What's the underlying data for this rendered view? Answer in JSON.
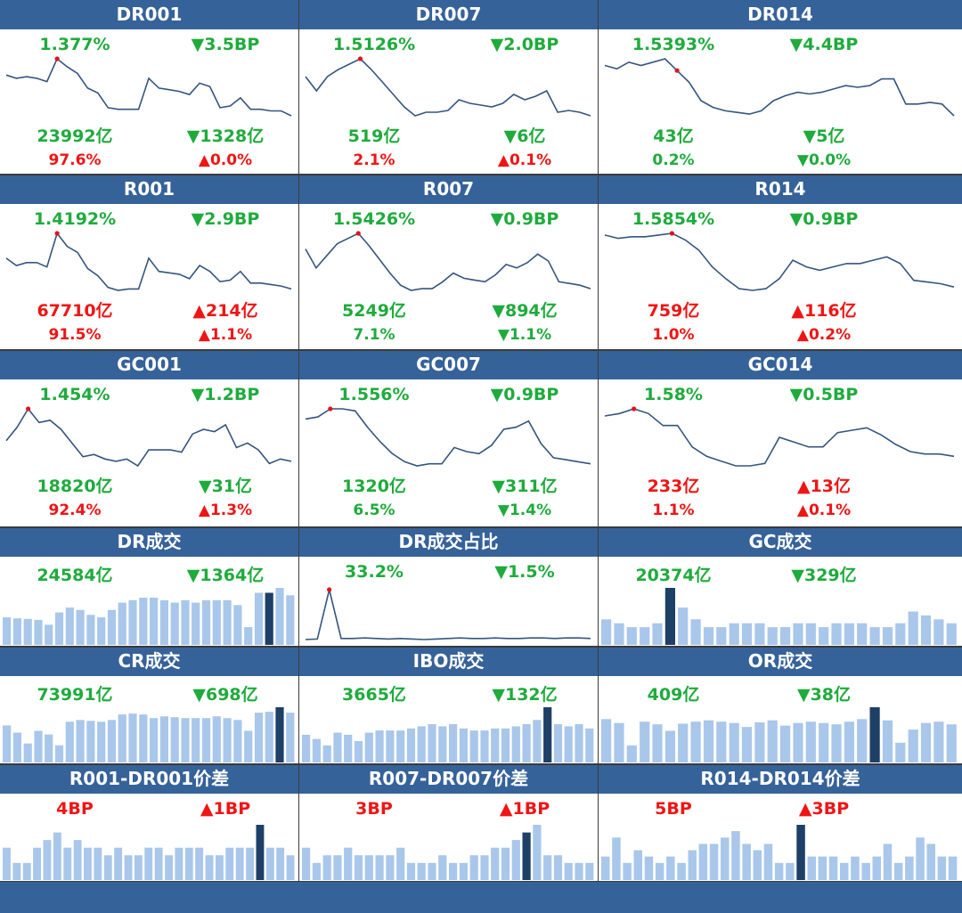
{
  "colors": {
    "header_bg": "#36629a",
    "up": "#f01414",
    "down": "#1fab3c",
    "line": "#34557f",
    "bar": "#a9c7ea",
    "bar_highlight": "#1e3f66"
  },
  "panels": [
    {
      "title": "DR001",
      "kind": "line",
      "rate": "1.377%",
      "rate_change": "▼3.5BP",
      "rate_dir": "down",
      "volume": "23992亿",
      "volume_change": "▼1328亿",
      "volume_dir": "down",
      "share": "97.6%",
      "share_change": "▲0.0%",
      "share_color": "up",
      "share_dir": "up"
    },
    {
      "title": "DR007",
      "kind": "line",
      "rate": "1.5126%",
      "rate_change": "▼2.0BP",
      "rate_dir": "down",
      "volume": "519亿",
      "volume_change": "▼6亿",
      "volume_dir": "down",
      "share": "2.1%",
      "share_change": "▲0.1%",
      "share_color": "up",
      "share_dir": "up"
    },
    {
      "title": "DR014",
      "kind": "line",
      "rate": "1.5393%",
      "rate_change": "▼4.4BP",
      "rate_dir": "down",
      "volume": "43亿",
      "volume_change": "▼5亿",
      "volume_dir": "down",
      "share": "0.2%",
      "share_change": "▼0.0%",
      "share_color": "down",
      "share_dir": "down"
    },
    {
      "title": "R001",
      "kind": "line",
      "rate": "1.4192%",
      "rate_change": "▼2.9BP",
      "rate_dir": "down",
      "volume": "67710亿",
      "volume_change": "▲214亿",
      "volume_dir": "up",
      "share": "91.5%",
      "share_change": "▲1.1%",
      "share_color": "up",
      "share_dir": "up"
    },
    {
      "title": "R007",
      "kind": "line",
      "rate": "1.5426%",
      "rate_change": "▼0.9BP",
      "rate_dir": "down",
      "volume": "5249亿",
      "volume_change": "▼894亿",
      "volume_dir": "down",
      "share": "7.1%",
      "share_change": "▼1.1%",
      "share_color": "down",
      "share_dir": "down"
    },
    {
      "title": "R014",
      "kind": "line",
      "rate": "1.5854%",
      "rate_change": "▼0.9BP",
      "rate_dir": "down",
      "volume": "759亿",
      "volume_change": "▲116亿",
      "volume_dir": "up",
      "share": "1.0%",
      "share_change": "▲0.2%",
      "share_color": "up",
      "share_dir": "up"
    },
    {
      "title": "GC001",
      "kind": "line",
      "rate": "1.454%",
      "rate_change": "▼1.2BP",
      "rate_dir": "down",
      "volume": "18820亿",
      "volume_change": "▼31亿",
      "volume_dir": "down",
      "share": "92.4%",
      "share_change": "▲1.3%",
      "share_color": "up",
      "share_dir": "up"
    },
    {
      "title": "GC007",
      "kind": "line",
      "rate": "1.556%",
      "rate_change": "▼0.9BP",
      "rate_dir": "down",
      "volume": "1320亿",
      "volume_change": "▼311亿",
      "volume_dir": "down",
      "share": "6.5%",
      "share_change": "▼1.4%",
      "share_color": "down",
      "share_dir": "down"
    },
    {
      "title": "GC014",
      "kind": "line",
      "rate": "1.58%",
      "rate_change": "▼0.5BP",
      "rate_dir": "down",
      "volume": "233亿",
      "volume_change": "▲13亿",
      "volume_dir": "up",
      "share": "1.1%",
      "share_change": "▲0.1%",
      "share_color": "up",
      "share_dir": "up"
    },
    {
      "title": "DR成交",
      "kind": "bar",
      "value": "24584亿",
      "value_change": "▼1364亿",
      "value_dir": "down"
    },
    {
      "title": "DR成交占比",
      "kind": "line",
      "value": "33.2%",
      "value_change": "▼1.5%",
      "value_dir": "down"
    },
    {
      "title": "GC成交",
      "kind": "bar",
      "value": "20374亿",
      "value_change": "▼329亿",
      "value_dir": "down"
    },
    {
      "title": "CR成交",
      "kind": "bar",
      "value": "73991亿",
      "value_change": "▼698亿",
      "value_dir": "down"
    },
    {
      "title": "IBO成交",
      "kind": "bar",
      "value": "3665亿",
      "value_change": "▼132亿",
      "value_dir": "down"
    },
    {
      "title": "OR成交",
      "kind": "bar",
      "value": "409亿",
      "value_change": "▼38亿",
      "value_dir": "down"
    },
    {
      "title": "R001-DR001价差",
      "kind": "bar",
      "value": "4BP",
      "value_change": "▲1BP",
      "value_dir": "up"
    },
    {
      "title": "R007-DR007价差",
      "kind": "bar",
      "value": "3BP",
      "value_change": "▲1BP",
      "value_dir": "up"
    },
    {
      "title": "R014-DR014价差",
      "kind": "bar",
      "value": "5BP",
      "value_change": "▲3BP",
      "value_dir": "up"
    }
  ],
  "chart_data": [
    {
      "type": "line",
      "title": "DR001",
      "values": [
        1.42,
        1.4,
        1.41,
        1.4,
        1.38,
        1.52,
        1.47,
        1.43,
        1.34,
        1.31,
        1.22,
        1.21,
        1.21,
        1.21,
        1.4,
        1.34,
        1.33,
        1.32,
        1.3,
        1.37,
        1.35,
        1.22,
        1.23,
        1.28,
        1.21,
        1.21,
        1.2,
        1.2,
        1.17
      ],
      "highlight_index": 5
    },
    {
      "type": "line",
      "title": "DR007",
      "values": [
        1.8,
        1.72,
        1.8,
        1.84,
        1.87,
        1.9,
        1.84,
        1.77,
        1.7,
        1.63,
        1.58,
        1.6,
        1.6,
        1.61,
        1.67,
        1.65,
        1.64,
        1.63,
        1.65,
        1.7,
        1.67,
        1.69,
        1.72,
        1.6,
        1.61,
        1.6,
        1.58
      ],
      "highlight_index": 5
    },
    {
      "type": "line",
      "title": "DR014",
      "values": [
        1.88,
        1.86,
        1.9,
        1.88,
        1.9,
        1.92,
        1.85,
        1.78,
        1.67,
        1.63,
        1.61,
        1.6,
        1.59,
        1.61,
        1.67,
        1.7,
        1.72,
        1.71,
        1.72,
        1.74,
        1.76,
        1.75,
        1.76,
        1.8,
        1.8,
        1.65,
        1.65,
        1.66,
        1.65,
        1.58
      ],
      "highlight_index": 6
    },
    {
      "type": "line",
      "title": "R001",
      "values": [
        1.45,
        1.4,
        1.42,
        1.42,
        1.39,
        1.62,
        1.53,
        1.49,
        1.38,
        1.33,
        1.25,
        1.23,
        1.24,
        1.24,
        1.45,
        1.36,
        1.35,
        1.34,
        1.31,
        1.4,
        1.36,
        1.29,
        1.3,
        1.36,
        1.28,
        1.28,
        1.27,
        1.26,
        1.24
      ],
      "highlight_index": 5
    },
    {
      "type": "line",
      "title": "R007",
      "values": [
        1.85,
        1.74,
        1.81,
        1.88,
        1.91,
        1.94,
        1.87,
        1.79,
        1.71,
        1.64,
        1.61,
        1.62,
        1.62,
        1.66,
        1.71,
        1.68,
        1.67,
        1.66,
        1.7,
        1.76,
        1.74,
        1.77,
        1.82,
        1.78,
        1.66,
        1.65,
        1.64,
        1.62
      ],
      "highlight_index": 5
    },
    {
      "type": "line",
      "title": "R014",
      "values": [
        1.93,
        1.91,
        1.92,
        1.92,
        1.93,
        1.94,
        1.9,
        1.84,
        1.74,
        1.67,
        1.61,
        1.6,
        1.61,
        1.67,
        1.78,
        1.74,
        1.72,
        1.74,
        1.76,
        1.76,
        1.78,
        1.8,
        1.76,
        1.66,
        1.65,
        1.64,
        1.62
      ],
      "highlight_index": 5
    },
    {
      "type": "line",
      "title": "GC001",
      "values": [
        1.32,
        1.38,
        1.46,
        1.4,
        1.41,
        1.37,
        1.31,
        1.25,
        1.26,
        1.24,
        1.23,
        1.24,
        1.21,
        1.28,
        1.28,
        1.28,
        1.27,
        1.35,
        1.37,
        1.36,
        1.39,
        1.29,
        1.31,
        1.28,
        1.22,
        1.24,
        1.23
      ],
      "highlight_index": 2
    },
    {
      "type": "line",
      "title": "GC007",
      "values": [
        1.9,
        1.91,
        1.95,
        1.95,
        1.94,
        1.86,
        1.79,
        1.73,
        1.69,
        1.67,
        1.68,
        1.68,
        1.76,
        1.74,
        1.73,
        1.77,
        1.85,
        1.86,
        1.89,
        1.78,
        1.71,
        1.7,
        1.69,
        1.68
      ],
      "highlight_index": 2
    },
    {
      "type": "line",
      "title": "GC014",
      "values": [
        1.92,
        1.93,
        1.95,
        1.93,
        1.88,
        1.88,
        1.79,
        1.75,
        1.73,
        1.71,
        1.71,
        1.72,
        1.83,
        1.81,
        1.79,
        1.79,
        1.85,
        1.86,
        1.87,
        1.84,
        1.8,
        1.77,
        1.76,
        1.76,
        1.75
      ],
      "highlight_index": 2
    },
    {
      "type": "bar",
      "title": "DR成交",
      "values": [
        22000,
        21800,
        21700,
        21500,
        20500,
        23000,
        24000,
        23500,
        22500,
        22000,
        23500,
        25000,
        25500,
        26000,
        26000,
        25500,
        25000,
        25500,
        25000,
        25500,
        25500,
        25500,
        24500,
        20000,
        27000,
        27000,
        28000,
        26500
      ],
      "highlight_index": 25
    },
    {
      "type": "line",
      "title": "DR成交占比",
      "values": [
        3,
        4,
        95,
        5,
        5,
        6,
        5,
        4,
        5,
        4,
        3,
        4,
        5,
        6,
        5,
        5,
        6,
        5,
        5,
        6,
        6,
        5,
        6,
        6,
        5
      ],
      "highlight_index": 2
    },
    {
      "type": "bar",
      "title": "GC成交",
      "values": [
        20500,
        20000,
        19500,
        19500,
        20000,
        24500,
        22000,
        20500,
        19500,
        19500,
        20000,
        20000,
        20000,
        19500,
        19500,
        20000,
        20000,
        19500,
        20000,
        20000,
        20000,
        19500,
        19500,
        20000,
        21500,
        21000,
        20500,
        20000
      ],
      "highlight_index": 5
    },
    {
      "type": "bar",
      "title": "CR成交",
      "values": [
        72000,
        68000,
        62000,
        69000,
        67000,
        61000,
        74000,
        75000,
        74500,
        74000,
        75000,
        78000,
        78500,
        78000,
        76000,
        77000,
        76500,
        76000,
        76000,
        76000,
        77000,
        76000,
        75000,
        69000,
        79000,
        79500,
        82000,
        79000
      ],
      "highlight_index": 26
    },
    {
      "type": "bar",
      "title": "IBO成交",
      "values": [
        3300,
        3100,
        2800,
        3400,
        3300,
        3000,
        3400,
        3500,
        3500,
        3500,
        3600,
        3700,
        3800,
        3700,
        3800,
        3600,
        3500,
        3500,
        3600,
        3600,
        3700,
        3800,
        4000,
        4600,
        3800,
        3700,
        3800,
        3600
      ],
      "highlight_index": 23
    },
    {
      "type": "bar",
      "title": "OR成交",
      "values": [
        380,
        350,
        180,
        360,
        340,
        290,
        345,
        360,
        370,
        360,
        350,
        320,
        355,
        370,
        330,
        350,
        360,
        350,
        340,
        360,
        380,
        470,
        370,
        200,
        300,
        350,
        360,
        340
      ],
      "highlight_index": 21
    },
    {
      "type": "bar",
      "title": "R001-DR001价差",
      "values": [
        3,
        1,
        1,
        3,
        4,
        5,
        3,
        4,
        3,
        3,
        2,
        3,
        2,
        2,
        3,
        3,
        2,
        3,
        3,
        3,
        2,
        2,
        3,
        3,
        3,
        6,
        3,
        3,
        2
      ],
      "highlight_index": 25
    },
    {
      "type": "bar",
      "title": "R007-DR007价差",
      "values": [
        3,
        1,
        2,
        2,
        3,
        2,
        2,
        2,
        2,
        3,
        1,
        1,
        1,
        2,
        1,
        1,
        2,
        2,
        3,
        3,
        4,
        5,
        6,
        2,
        2,
        1,
        1,
        1
      ],
      "highlight_index": 21
    },
    {
      "type": "bar",
      "title": "R014-DR014价差",
      "values": [
        1,
        4,
        0,
        2,
        1,
        0,
        1,
        0,
        2,
        3,
        3,
        4,
        5,
        3,
        2,
        3,
        0,
        0,
        6,
        1,
        1,
        1,
        0,
        1,
        0,
        1,
        3,
        0,
        1,
        4,
        3,
        1,
        1
      ],
      "highlight_index": 18
    }
  ]
}
